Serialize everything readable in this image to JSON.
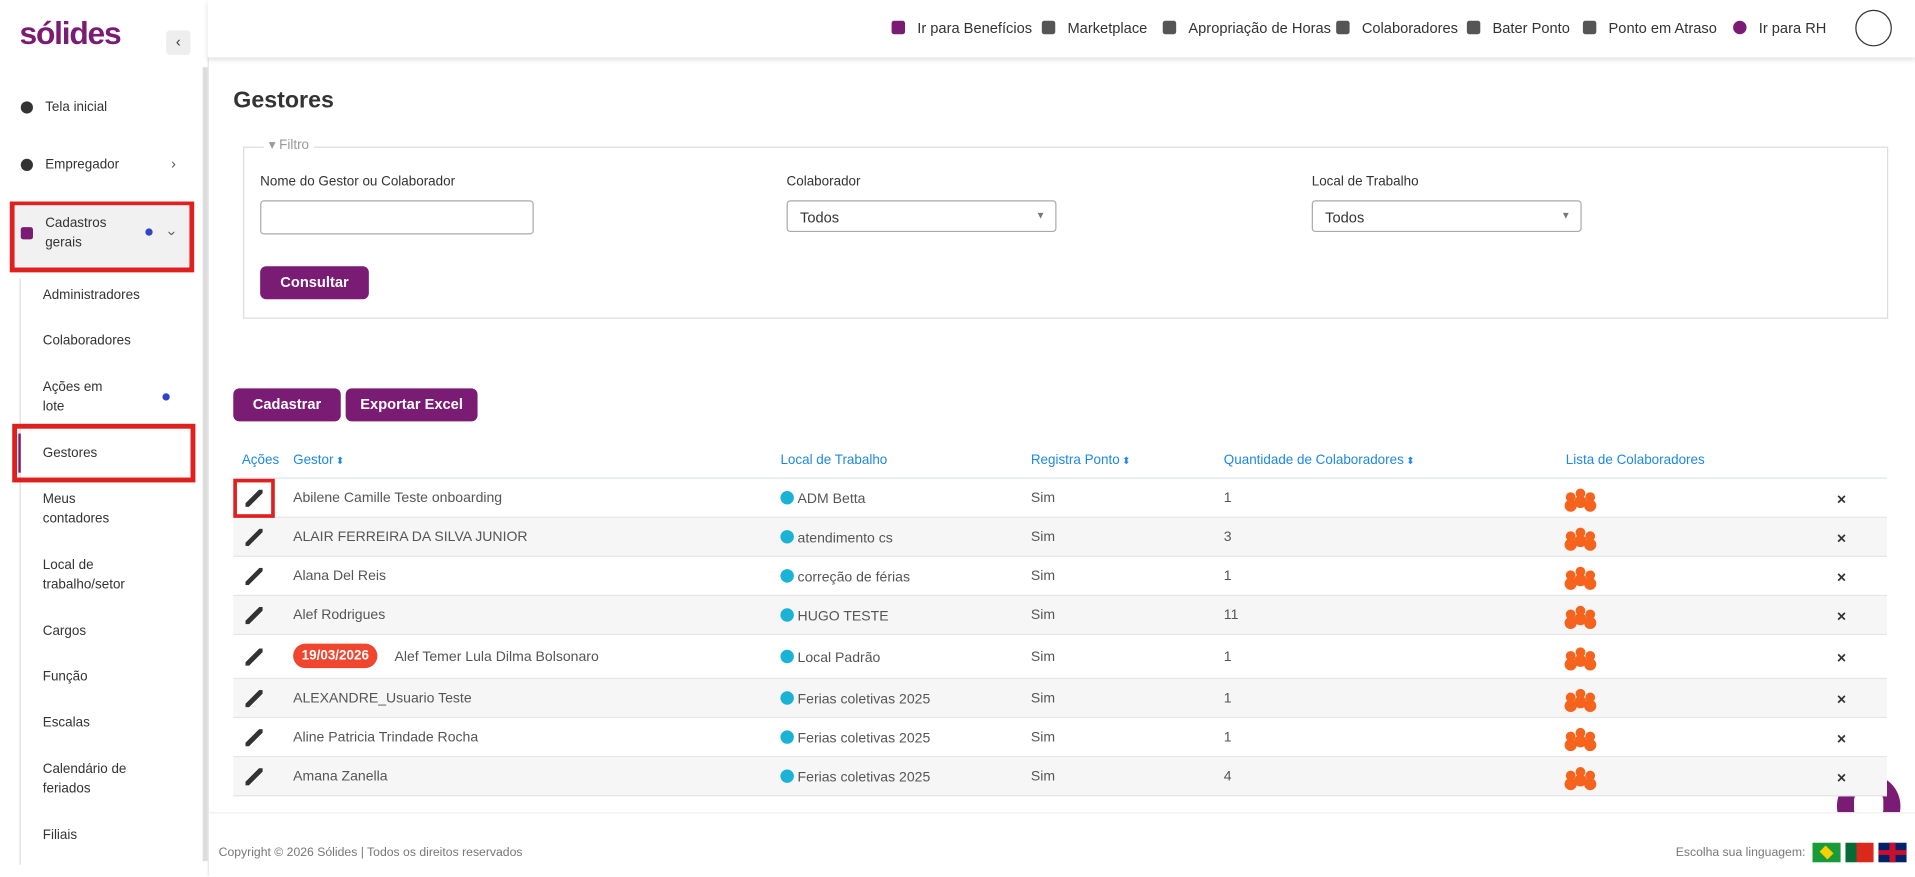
{
  "header": {
    "logo": "sólides",
    "nav": [
      "Ir para Benefícios",
      "Marketplace",
      "Apropriação de Horas",
      "Colaboradores",
      "Bater Ponto",
      "Ponto em Atraso",
      "Ir para RH"
    ]
  },
  "sidebar": {
    "items": [
      "Tela inicial",
      "Empregador",
      "Cadastros gerais",
      "Administradores",
      "Colaboradores",
      "Ações em lote",
      "Gestores",
      "Meus contadores",
      "Local de trabalho/setor",
      "Cargos",
      "Função",
      "Escalas",
      "Calendário de feriados",
      "Filiais"
    ]
  },
  "page": {
    "title": "Gestores",
    "filter": {
      "legend": "Filtro",
      "labels": [
        "Nome do Gestor ou Colaborador",
        "Colaborador",
        "Local de Trabalho"
      ],
      "selects": [
        "Todos",
        "Todos"
      ],
      "button": "Consultar"
    },
    "buttons": [
      "Cadastrar",
      "Exportar Excel"
    ],
    "table": {
      "headers": [
        "Ações",
        "Gestor",
        "Local de Trabalho",
        "Registra Ponto",
        "Quantidade de Colaboradores",
        "Lista de Colaboradores"
      ],
      "rows": [
        {
          "name": "Abilene Camille Teste onboarding",
          "local": "ADM Betta",
          "ponto": "Sim",
          "qtd": "1"
        },
        {
          "name": "ALAIR FERREIRA DA SILVA JUNIOR",
          "local": "atendimento cs",
          "ponto": "Sim",
          "qtd": "3"
        },
        {
          "name": "Alana Del Reis",
          "local": "correção de férias",
          "ponto": "Sim",
          "qtd": "1"
        },
        {
          "name": "Alef Rodrigues",
          "local": "HUGO TESTE",
          "ponto": "Sim",
          "qtd": "11"
        },
        {
          "badge": "19/03/2026",
          "name": "Alef Temer Lula Dilma Bolsonaro",
          "local": "Local Padrão",
          "ponto": "Sim",
          "qtd": "1"
        },
        {
          "name": "ALEXANDRE_Usuario Teste",
          "local": "Ferias coletivas 2025",
          "ponto": "Sim",
          "qtd": "1"
        },
        {
          "name": "Aline Patricia Trindade Rocha",
          "local": "Ferias coletivas 2025",
          "ponto": "Sim",
          "qtd": "1"
        },
        {
          "name": "Amana Zanella",
          "local": "Ferias coletivas 2025",
          "ponto": "Sim",
          "qtd": "4"
        }
      ]
    }
  },
  "footer": {
    "copyright": "Copyright © 2026 Sólides | Todos os direitos reservados",
    "language": "Escolha sua linguagem:"
  }
}
